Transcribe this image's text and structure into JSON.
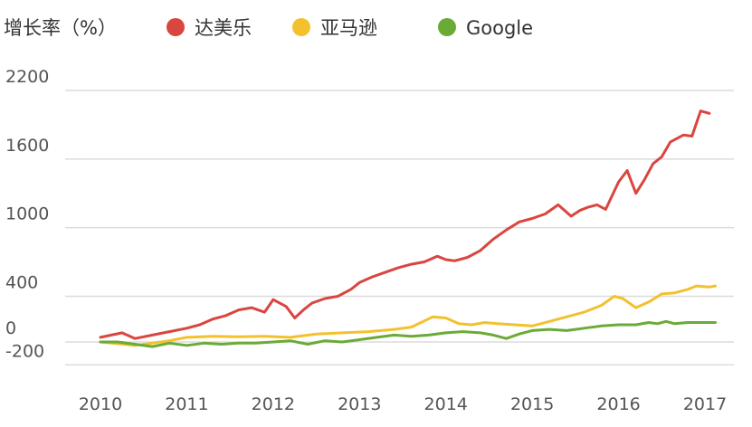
{
  "chart_data": {
    "type": "line",
    "ylabel": "增长率（%）",
    "legend_position": "top",
    "grid": true,
    "x_ticks": [
      "2010",
      "2011",
      "2012",
      "2013",
      "2014",
      "2015",
      "2016",
      "2017"
    ],
    "y_ticks": [
      "2200",
      "1600",
      "1000",
      "400",
      "0",
      "-200"
    ],
    "ylim": [
      -200,
      2200
    ],
    "xlim": [
      2010,
      2017
    ],
    "series": [
      {
        "name": "达美乐",
        "color": "#d9463f",
        "x": [
          2010.0,
          2010.25,
          2010.4,
          2010.6,
          2010.8,
          2011.0,
          2011.15,
          2011.3,
          2011.45,
          2011.6,
          2011.75,
          2011.9,
          2012.0,
          2012.15,
          2012.25,
          2012.35,
          2012.45,
          2012.6,
          2012.75,
          2012.9,
          2013.0,
          2013.15,
          2013.3,
          2013.45,
          2013.6,
          2013.75,
          2013.9,
          2014.0,
          2014.1,
          2014.25,
          2014.4,
          2014.55,
          2014.7,
          2014.85,
          2015.0,
          2015.15,
          2015.3,
          2015.45,
          2015.55,
          2015.65,
          2015.75,
          2015.85,
          2016.0,
          2016.1,
          2016.2,
          2016.3,
          2016.4,
          2016.5,
          2016.6,
          2016.75,
          2016.85,
          2016.95,
          2017.05
        ],
        "y": [
          40,
          80,
          30,
          60,
          90,
          120,
          150,
          200,
          230,
          280,
          300,
          260,
          370,
          310,
          210,
          280,
          340,
          380,
          400,
          460,
          520,
          570,
          610,
          650,
          680,
          700,
          750,
          720,
          710,
          740,
          800,
          900,
          980,
          1050,
          1080,
          1120,
          1200,
          1100,
          1150,
          1180,
          1200,
          1160,
          1400,
          1500,
          1300,
          1420,
          1560,
          1620,
          1750,
          1810,
          1800,
          2020,
          2000
        ]
      },
      {
        "name": "亚马逊",
        "color": "#f3c12e",
        "x": [
          2010.0,
          2010.4,
          2010.8,
          2011.0,
          2011.3,
          2011.6,
          2011.9,
          2012.2,
          2012.5,
          2012.8,
          2013.1,
          2013.4,
          2013.6,
          2013.85,
          2014.0,
          2014.15,
          2014.3,
          2014.45,
          2014.6,
          2014.8,
          2015.0,
          2015.2,
          2015.4,
          2015.6,
          2015.8,
          2015.95,
          2016.05,
          2016.2,
          2016.35,
          2016.5,
          2016.65,
          2016.8,
          2016.9,
          2017.05,
          2017.12
        ],
        "y": [
          0,
          -30,
          10,
          40,
          50,
          45,
          50,
          40,
          70,
          80,
          90,
          110,
          130,
          220,
          210,
          160,
          150,
          170,
          160,
          150,
          140,
          180,
          220,
          260,
          320,
          400,
          380,
          300,
          350,
          420,
          430,
          460,
          490,
          480,
          490
        ]
      },
      {
        "name": "Google",
        "color": "#6aab37",
        "x": [
          2010.0,
          2010.2,
          2010.4,
          2010.6,
          2010.8,
          2011.0,
          2011.2,
          2011.4,
          2011.6,
          2011.8,
          2012.0,
          2012.2,
          2012.4,
          2012.6,
          2012.8,
          2013.0,
          2013.2,
          2013.4,
          2013.6,
          2013.8,
          2014.0,
          2014.2,
          2014.4,
          2014.55,
          2014.7,
          2014.85,
          2015.0,
          2015.2,
          2015.4,
          2015.6,
          2015.8,
          2016.0,
          2016.2,
          2016.35,
          2016.45,
          2016.55,
          2016.65,
          2016.8,
          2017.0,
          2017.12
        ],
        "y": [
          0,
          0,
          -20,
          -40,
          -10,
          -30,
          -10,
          -20,
          -10,
          -10,
          0,
          10,
          -20,
          10,
          0,
          20,
          40,
          60,
          50,
          60,
          80,
          90,
          80,
          60,
          30,
          70,
          100,
          110,
          100,
          120,
          140,
          150,
          150,
          170,
          160,
          180,
          160,
          170,
          170,
          170
        ]
      }
    ]
  }
}
